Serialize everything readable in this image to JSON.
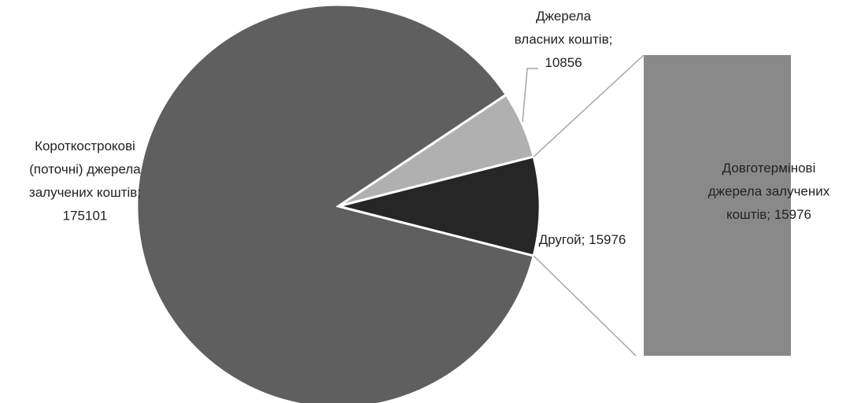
{
  "chart_data": {
    "type": "bar-of-pie",
    "categories": [
      "Короткострокові (поточні) джерела залучених коштів",
      "Джерела власних коштів",
      "Другой"
    ],
    "values": [
      175101,
      10856,
      15976
    ],
    "labels": [
      "Короткострокові (поточні) джерела залучених коштів; 175101",
      "Джерела власних коштів; 10856",
      "Другой; 15976"
    ],
    "colors": [
      "#5f5f5f",
      "#b0b0b0",
      "#262626"
    ],
    "bar": {
      "categories": [
        "Довготермінові джерела залучених коштів"
      ],
      "values": [
        15976
      ],
      "labels": [
        "Довготермінові джерела залучених коштів; 15976"
      ],
      "color": "#898989"
    }
  }
}
